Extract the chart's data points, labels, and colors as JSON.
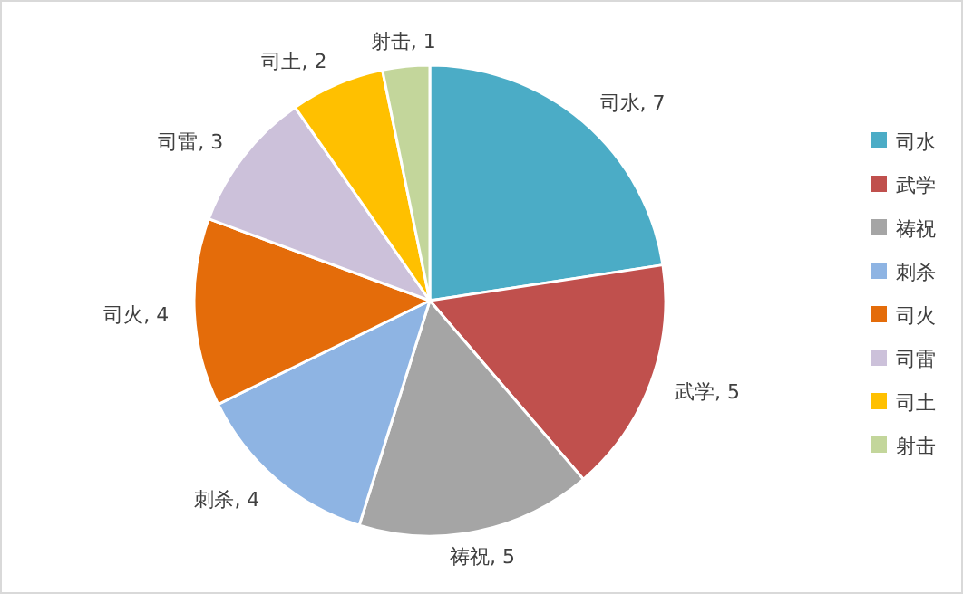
{
  "chart_data": {
    "type": "pie",
    "categories": [
      "司水",
      "武学",
      "祷祝",
      "刺杀",
      "司火",
      "司雷",
      "司土",
      "射击"
    ],
    "values": [
      7,
      5,
      5,
      4,
      4,
      3,
      2,
      1
    ],
    "colors": [
      "#4bacc6",
      "#c0504d",
      "#a5a5a5",
      "#8eb4e3",
      "#e46c0a",
      "#ccc1da",
      "#ffc000",
      "#c3d69b"
    ],
    "value_labels": [
      "司水, 7",
      "武学, 5",
      "祷祝, 5",
      "刺杀, 4",
      "司火, 4",
      "司雷, 3",
      "司土, 2",
      "射击, 1"
    ],
    "legend": "right"
  }
}
